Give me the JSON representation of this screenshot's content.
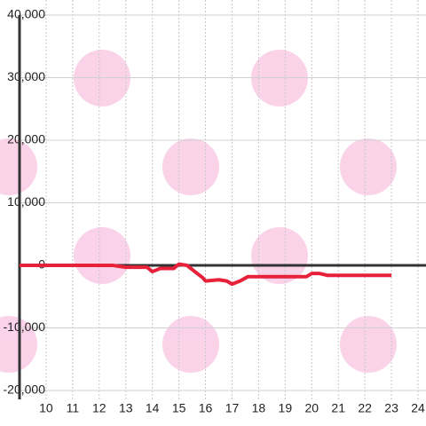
{
  "chart_data": {
    "type": "line",
    "x": [
      9,
      12.5,
      13,
      13.8,
      14,
      14.3,
      14.8,
      15.0,
      15.3,
      15.6,
      15.9,
      16.0,
      16.5,
      16.8,
      17.0,
      17.3,
      17.6,
      18.0,
      19.8,
      20.0,
      20.3,
      20.6,
      23.0
    ],
    "series": [
      {
        "color": "#e8213a",
        "values": [
          0,
          0,
          -300,
          -300,
          -1000,
          -500,
          -500,
          200,
          0,
          -1000,
          -2000,
          -2500,
          -2300,
          -2500,
          -3000,
          -2500,
          -1800,
          -1800,
          -1800,
          -1300,
          -1300,
          -1600,
          -1600
        ]
      }
    ],
    "xlim": [
      9,
      24.3
    ],
    "xticks": [
      10,
      11,
      12,
      13,
      14,
      15,
      16,
      17,
      18,
      19,
      20,
      21,
      22,
      23,
      24
    ],
    "ylim": [
      -20000,
      40000
    ],
    "yticks": [
      {
        "value": -20000,
        "label": "-20,000"
      },
      {
        "value": -10000,
        "label": "-10,000"
      },
      0,
      {
        "value": 10000,
        "label": "10,000"
      },
      {
        "value": 20000,
        "label": "20,000"
      },
      {
        "value": 30000,
        "label": "30,000"
      },
      {
        "value": 40000,
        "label": "40,000"
      }
    ],
    "grid": true
  }
}
